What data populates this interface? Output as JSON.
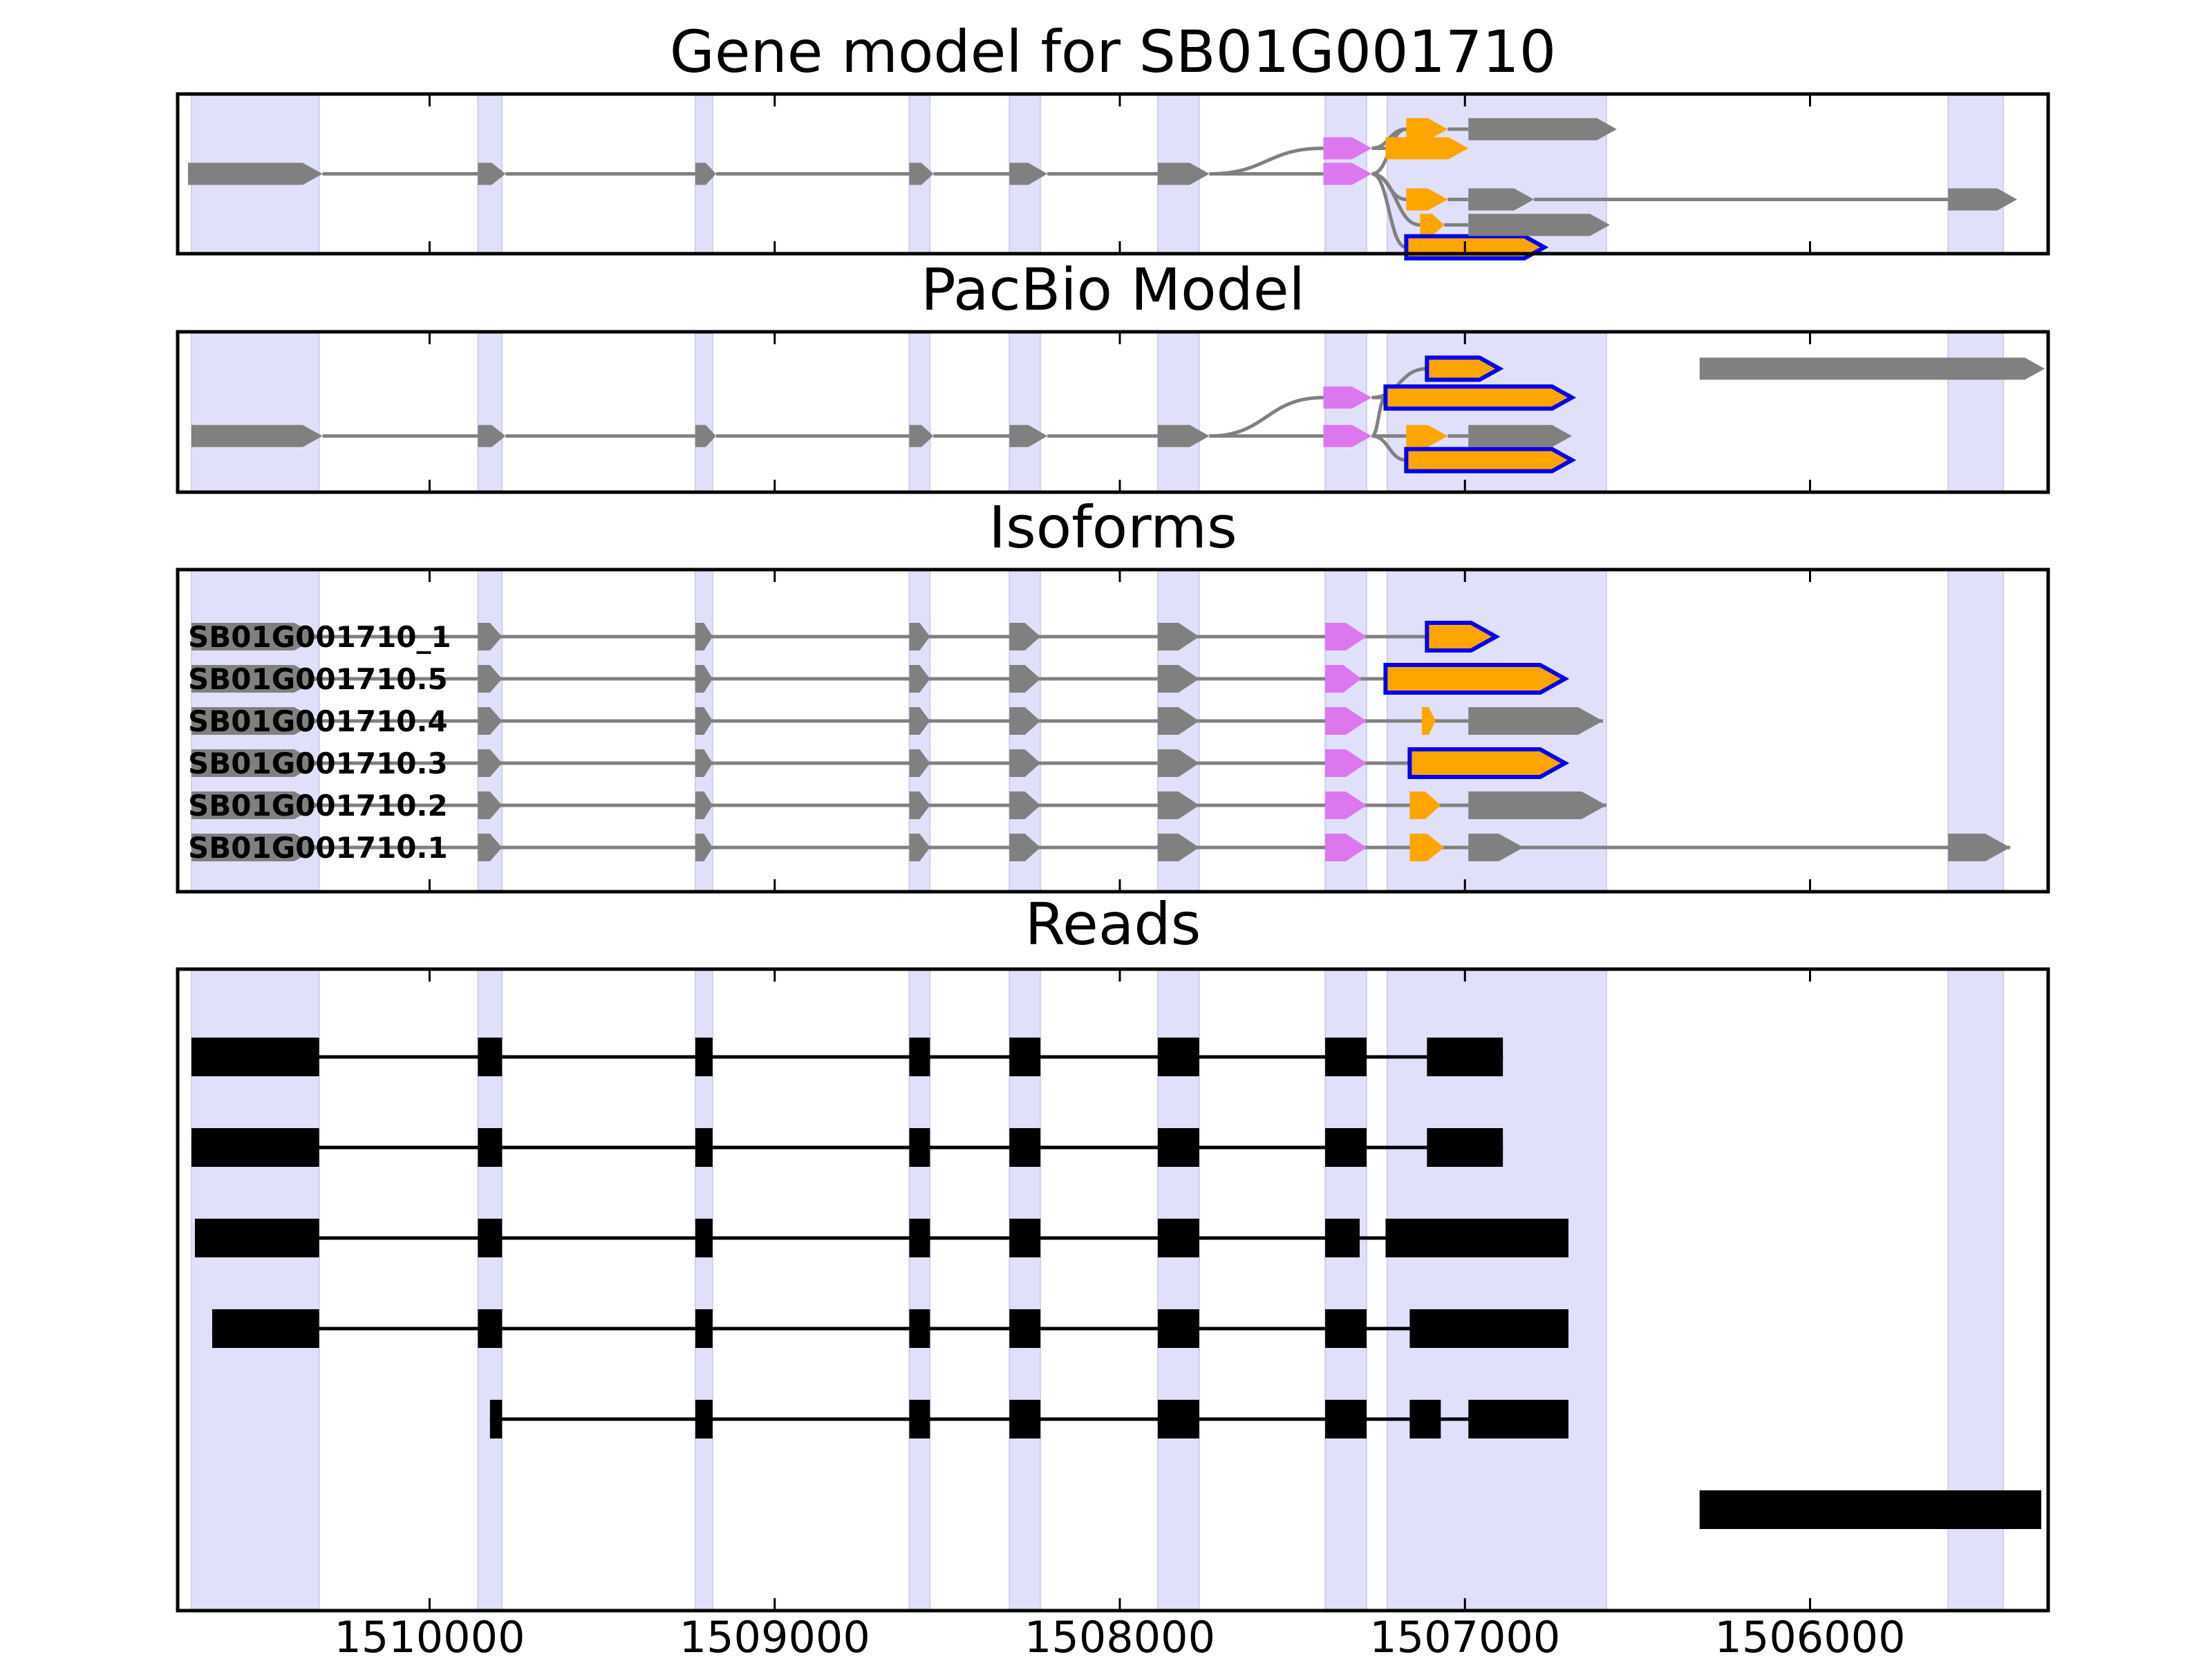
{
  "chart_data": {
    "type": "gene-structure",
    "title": "Gene model for SB01G001710",
    "x_axis": {
      "reversed": true,
      "xlim": [
        1510730,
        1505310
      ],
      "ticks": [
        1510000,
        1509000,
        1508000,
        1507000,
        1506000
      ],
      "tick_labels": [
        "1510000",
        "1509000",
        "1508000",
        "1507000",
        "1506000"
      ]
    },
    "colors": {
      "background_band": "#e0e0fa",
      "intron": "#808080",
      "utr_exon": "#808080",
      "start_exon": "#dd77ee",
      "cds_exon": "#ffa500",
      "selected_outline": "#0000ee",
      "read": "#000000",
      "frame": "#000000"
    },
    "exon_regions": [
      [
        1510690,
        1510320
      ],
      [
        1509860,
        1509790
      ],
      [
        1509230,
        1509180
      ],
      [
        1508610,
        1508550
      ],
      [
        1508320,
        1508230
      ],
      [
        1507890,
        1507770
      ],
      [
        1507405,
        1507285
      ],
      [
        1507225,
        1506590
      ],
      [
        1505600,
        1505440
      ]
    ],
    "panels": [
      {
        "title": "Gene model for SB01G001710",
        "kind": "splice-graph",
        "nodes": [
          {
            "id": "g0",
            "start": 1510700,
            "end": 1510310,
            "row": 0,
            "type": "utr"
          },
          {
            "id": "g1",
            "start": 1509860,
            "end": 1509780,
            "row": 0,
            "type": "utr"
          },
          {
            "id": "g2",
            "start": 1509230,
            "end": 1509170,
            "row": 0,
            "type": "utr"
          },
          {
            "id": "g3",
            "start": 1508610,
            "end": 1508540,
            "row": 0,
            "type": "utr"
          },
          {
            "id": "g4",
            "start": 1508320,
            "end": 1508210,
            "row": 0,
            "type": "utr"
          },
          {
            "id": "g5",
            "start": 1507890,
            "end": 1507740,
            "row": 0,
            "type": "utr"
          },
          {
            "id": "g6",
            "start": 1507410,
            "end": 1507270,
            "row": 1,
            "type": "start"
          },
          {
            "id": "g7",
            "start": 1507410,
            "end": 1507270,
            "row": 0,
            "type": "start"
          },
          {
            "id": "g8",
            "start": 1507230,
            "end": 1506990,
            "row": 1,
            "type": "cds"
          },
          {
            "id": "g9",
            "start": 1507170,
            "end": 1507050,
            "row": 2,
            "type": "cds"
          },
          {
            "id": "g10",
            "start": 1507170,
            "end": 1507050,
            "row": 3,
            "type": "cds"
          },
          {
            "id": "g11",
            "start": 1507130,
            "end": 1507060,
            "row": 4,
            "type": "cds"
          },
          {
            "id": "g12",
            "start": 1507170,
            "end": 1506770,
            "row": 5,
            "type": "cds",
            "outlined": true
          },
          {
            "id": "g13",
            "start": 1506990,
            "end": 1506560,
            "row": 2,
            "type": "utr"
          },
          {
            "id": "g14",
            "start": 1506990,
            "end": 1506800,
            "row": 3,
            "type": "utr"
          },
          {
            "id": "g15",
            "start": 1506990,
            "end": 1506580,
            "row": 4,
            "type": "utr"
          },
          {
            "id": "g16",
            "start": 1505600,
            "end": 1505400,
            "row": 3,
            "type": "utr"
          }
        ],
        "edges": [
          [
            "g0",
            "g1"
          ],
          [
            "g1",
            "g2"
          ],
          [
            "g2",
            "g3"
          ],
          [
            "g3",
            "g4"
          ],
          [
            "g4",
            "g5"
          ],
          [
            "g5",
            "g6"
          ],
          [
            "g5",
            "g7"
          ],
          [
            "g6",
            "g8"
          ],
          [
            "g6",
            "g9"
          ],
          [
            "g7",
            "g9"
          ],
          [
            "g7",
            "g10"
          ],
          [
            "g7",
            "g11"
          ],
          [
            "g7",
            "g12"
          ],
          [
            "g9",
            "g13"
          ],
          [
            "g10",
            "g14"
          ],
          [
            "g11",
            "g15"
          ],
          [
            "g14",
            "g16"
          ]
        ]
      },
      {
        "title": "PacBio Model",
        "kind": "splice-graph",
        "nodes": [
          {
            "id": "p0",
            "start": 1510690,
            "end": 1510310,
            "row": 0,
            "type": "utr"
          },
          {
            "id": "p1",
            "start": 1509860,
            "end": 1509780,
            "row": 0,
            "type": "utr"
          },
          {
            "id": "p2",
            "start": 1509230,
            "end": 1509170,
            "row": 0,
            "type": "utr"
          },
          {
            "id": "p3",
            "start": 1508610,
            "end": 1508540,
            "row": 0,
            "type": "utr"
          },
          {
            "id": "p4",
            "start": 1508320,
            "end": 1508210,
            "row": 0,
            "type": "utr"
          },
          {
            "id": "p5",
            "start": 1507890,
            "end": 1507740,
            "row": 0,
            "type": "utr"
          },
          {
            "id": "p6",
            "start": 1507410,
            "end": 1507270,
            "row": 1,
            "type": "start"
          },
          {
            "id": "p7",
            "start": 1507410,
            "end": 1507270,
            "row": 0,
            "type": "start"
          },
          {
            "id": "p8",
            "start": 1507110,
            "end": 1506900,
            "row": 2,
            "type": "cds",
            "outlined": true
          },
          {
            "id": "p9",
            "start": 1507230,
            "end": 1506690,
            "row": 1,
            "type": "cds",
            "outlined": true
          },
          {
            "id": "p10",
            "start": 1507170,
            "end": 1507050,
            "row": 0,
            "type": "cds"
          },
          {
            "id": "p11",
            "start": 1507170,
            "end": 1506690,
            "row": 3,
            "type": "cds",
            "outlined": true
          },
          {
            "id": "p12",
            "start": 1506990,
            "end": 1506690,
            "row": 0,
            "type": "utr"
          },
          {
            "id": "p13",
            "start": 1506320,
            "end": 1505320,
            "row": 2,
            "type": "utr"
          }
        ],
        "edges": [
          [
            "p0",
            "p1"
          ],
          [
            "p1",
            "p2"
          ],
          [
            "p2",
            "p3"
          ],
          [
            "p3",
            "p4"
          ],
          [
            "p4",
            "p5"
          ],
          [
            "p5",
            "p6"
          ],
          [
            "p5",
            "p7"
          ],
          [
            "p6",
            "p8"
          ],
          [
            "p6",
            "p9"
          ],
          [
            "p7",
            "p9"
          ],
          [
            "p7",
            "p10"
          ],
          [
            "p7",
            "p11"
          ],
          [
            "p10",
            "p12"
          ]
        ]
      },
      {
        "title": "Isoforms",
        "kind": "isoforms",
        "isoforms": [
          {
            "label": "SB01G001710_1",
            "exons": [
              [
                1510690,
                1510320,
                "utr"
              ],
              [
                1509860,
                1509790,
                "utr"
              ],
              [
                1509230,
                1509180,
                "utr"
              ],
              [
                1508610,
                1508550,
                "utr"
              ],
              [
                1508320,
                1508230,
                "utr"
              ],
              [
                1507890,
                1507770,
                "utr"
              ],
              [
                1507405,
                1507285,
                "start"
              ],
              [
                1507110,
                1506910,
                "cds_outlined"
              ]
            ]
          },
          {
            "label": "SB01G001710.5",
            "exons": [
              [
                1510690,
                1510320,
                "utr"
              ],
              [
                1509860,
                1509790,
                "utr"
              ],
              [
                1509230,
                1509180,
                "utr"
              ],
              [
                1508610,
                1508550,
                "utr"
              ],
              [
                1508320,
                1508230,
                "utr"
              ],
              [
                1507890,
                1507770,
                "utr"
              ],
              [
                1507405,
                1507300,
                "start"
              ],
              [
                1507230,
                1506710,
                "cds_outlined"
              ]
            ]
          },
          {
            "label": "SB01G001710.4",
            "exons": [
              [
                1510690,
                1510320,
                "utr"
              ],
              [
                1509860,
                1509790,
                "utr"
              ],
              [
                1509230,
                1509180,
                "utr"
              ],
              [
                1508610,
                1508550,
                "utr"
              ],
              [
                1508320,
                1508230,
                "utr"
              ],
              [
                1507890,
                1507770,
                "utr"
              ],
              [
                1507405,
                1507285,
                "start"
              ],
              [
                1507125,
                1507085,
                "cds"
              ],
              [
                1506990,
                1506600,
                "utr"
              ]
            ]
          },
          {
            "label": "SB01G001710.3",
            "exons": [
              [
                1510690,
                1510320,
                "utr"
              ],
              [
                1509860,
                1509790,
                "utr"
              ],
              [
                1509230,
                1509180,
                "utr"
              ],
              [
                1508610,
                1508550,
                "utr"
              ],
              [
                1508320,
                1508230,
                "utr"
              ],
              [
                1507890,
                1507770,
                "utr"
              ],
              [
                1507405,
                1507285,
                "start"
              ],
              [
                1507160,
                1506710,
                "cds_outlined"
              ]
            ]
          },
          {
            "label": "SB01G001710.2",
            "exons": [
              [
                1510690,
                1510320,
                "utr"
              ],
              [
                1509860,
                1509790,
                "utr"
              ],
              [
                1509230,
                1509180,
                "utr"
              ],
              [
                1508610,
                1508550,
                "utr"
              ],
              [
                1508320,
                1508230,
                "utr"
              ],
              [
                1507890,
                1507770,
                "utr"
              ],
              [
                1507405,
                1507285,
                "start"
              ],
              [
                1507160,
                1507070,
                "cds"
              ],
              [
                1506990,
                1506590,
                "utr"
              ]
            ]
          },
          {
            "label": "SB01G001710.1",
            "exons": [
              [
                1510690,
                1510320,
                "utr"
              ],
              [
                1509860,
                1509790,
                "utr"
              ],
              [
                1509230,
                1509180,
                "utr"
              ],
              [
                1508610,
                1508550,
                "utr"
              ],
              [
                1508320,
                1508230,
                "utr"
              ],
              [
                1507890,
                1507770,
                "utr"
              ],
              [
                1507405,
                1507285,
                "start"
              ],
              [
                1507160,
                1507060,
                "cds"
              ],
              [
                1506990,
                1506830,
                "utr"
              ],
              [
                1505600,
                1505420,
                "utr"
              ]
            ]
          }
        ]
      },
      {
        "title": "Reads",
        "kind": "reads",
        "reads": [
          [
            [
              1510690,
              1510320
            ],
            [
              1509860,
              1509790
            ],
            [
              1509230,
              1509180
            ],
            [
              1508610,
              1508550
            ],
            [
              1508320,
              1508230
            ],
            [
              1507890,
              1507770
            ],
            [
              1507405,
              1507285
            ],
            [
              1507110,
              1506890
            ]
          ],
          [
            [
              1510690,
              1510320
            ],
            [
              1509860,
              1509790
            ],
            [
              1509230,
              1509180
            ],
            [
              1508610,
              1508550
            ],
            [
              1508320,
              1508230
            ],
            [
              1507890,
              1507770
            ],
            [
              1507405,
              1507285
            ],
            [
              1507110,
              1506890
            ]
          ],
          [
            [
              1510680,
              1510320
            ],
            [
              1509860,
              1509790
            ],
            [
              1509230,
              1509180
            ],
            [
              1508610,
              1508550
            ],
            [
              1508320,
              1508230
            ],
            [
              1507890,
              1507770
            ],
            [
              1507405,
              1507305
            ],
            [
              1507230,
              1506700
            ]
          ],
          [
            [
              1510630,
              1510320
            ],
            [
              1509860,
              1509790
            ],
            [
              1509230,
              1509180
            ],
            [
              1508610,
              1508550
            ],
            [
              1508320,
              1508230
            ],
            [
              1507890,
              1507770
            ],
            [
              1507405,
              1507285
            ],
            [
              1507160,
              1506700
            ]
          ],
          [
            [
              1509825,
              1509790
            ],
            [
              1509230,
              1509180
            ],
            [
              1508610,
              1508550
            ],
            [
              1508320,
              1508230
            ],
            [
              1507890,
              1507770
            ],
            [
              1507405,
              1507285
            ],
            [
              1507160,
              1507070
            ],
            [
              1506990,
              1506700
            ]
          ],
          [
            [
              1506320,
              1505330
            ]
          ]
        ]
      }
    ]
  }
}
